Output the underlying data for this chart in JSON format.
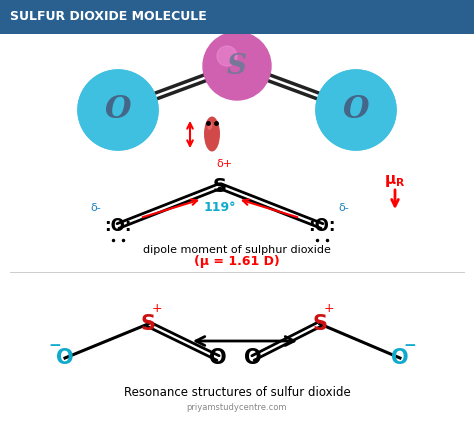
{
  "title": "SULFUR DIOXIDE MOLECULE",
  "title_bg": "#2a6090",
  "title_color": "white",
  "bg_color": "white",
  "S_color_3d": "#d060b0",
  "O_color_3d": "#40c0e0",
  "dipole_text": "dipole moment of sulphur dioxide",
  "dipole_mu": "(μ = 1.61 D)",
  "resonance_text": "Resonance structures of sulfur dioxide",
  "website": "priyamstudycentre.com",
  "angle_text": "119°",
  "delta_plus": "δ+",
  "delta_minus": "δ-"
}
